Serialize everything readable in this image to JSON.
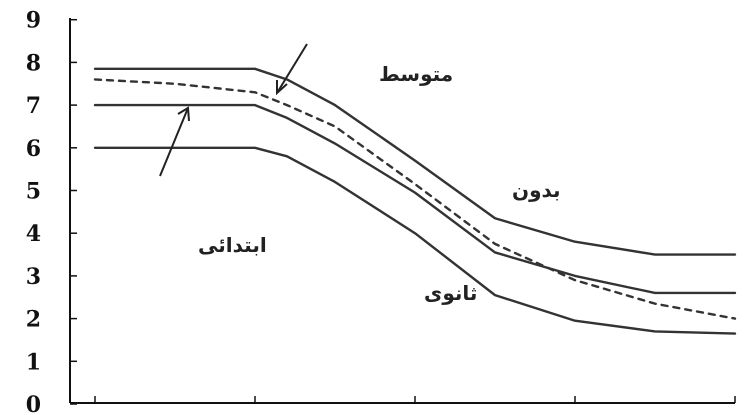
{
  "chart_data": {
    "type": "line",
    "title": "",
    "xlabel": "",
    "ylabel": "",
    "ylim": [
      0,
      9
    ],
    "y_ticks": [
      0,
      1,
      2,
      3,
      4,
      5,
      6,
      7,
      8,
      9
    ],
    "x_tick_count": 5,
    "grid": false,
    "legend": "none",
    "series": [
      {
        "name": "بدون",
        "style": "solid",
        "points": [
          [
            0.0,
            7.85
          ],
          [
            1.0,
            7.85
          ],
          [
            1.2,
            7.6
          ],
          [
            1.5,
            7.0
          ],
          [
            2.0,
            5.7
          ],
          [
            2.5,
            4.35
          ],
          [
            3.0,
            3.8
          ],
          [
            3.5,
            3.5
          ],
          [
            4.0,
            3.5
          ]
        ]
      },
      {
        "name": "متوسط",
        "style": "dashed",
        "points": [
          [
            0.0,
            7.6
          ],
          [
            0.5,
            7.5
          ],
          [
            1.0,
            7.3
          ],
          [
            1.2,
            7.0
          ],
          [
            1.5,
            6.5
          ],
          [
            2.0,
            5.15
          ],
          [
            2.5,
            3.75
          ],
          [
            3.0,
            2.9
          ],
          [
            3.5,
            2.35
          ],
          [
            4.0,
            2.0
          ]
        ]
      },
      {
        "name": "ابتدائی",
        "style": "solid",
        "points": [
          [
            0.0,
            7.0
          ],
          [
            1.0,
            7.0
          ],
          [
            1.2,
            6.7
          ],
          [
            1.5,
            6.1
          ],
          [
            2.0,
            4.95
          ],
          [
            2.5,
            3.55
          ],
          [
            3.0,
            3.0
          ],
          [
            3.5,
            2.6
          ],
          [
            4.0,
            2.6
          ]
        ]
      },
      {
        "name": "ثانوی",
        "style": "solid",
        "points": [
          [
            0.0,
            6.0
          ],
          [
            1.0,
            6.0
          ],
          [
            1.2,
            5.8
          ],
          [
            1.5,
            5.2
          ],
          [
            2.0,
            4.0
          ],
          [
            2.5,
            2.55
          ],
          [
            3.0,
            1.95
          ],
          [
            3.5,
            1.7
          ],
          [
            4.0,
            1.65
          ]
        ]
      }
    ]
  },
  "annotations": {
    "motavasset": "متوسط",
    "bedun": "بدون",
    "ebtedai": "ابتدائی",
    "sanavi": "ثانوی"
  },
  "colors": {
    "axis": "#111111",
    "lines": "#333333"
  }
}
